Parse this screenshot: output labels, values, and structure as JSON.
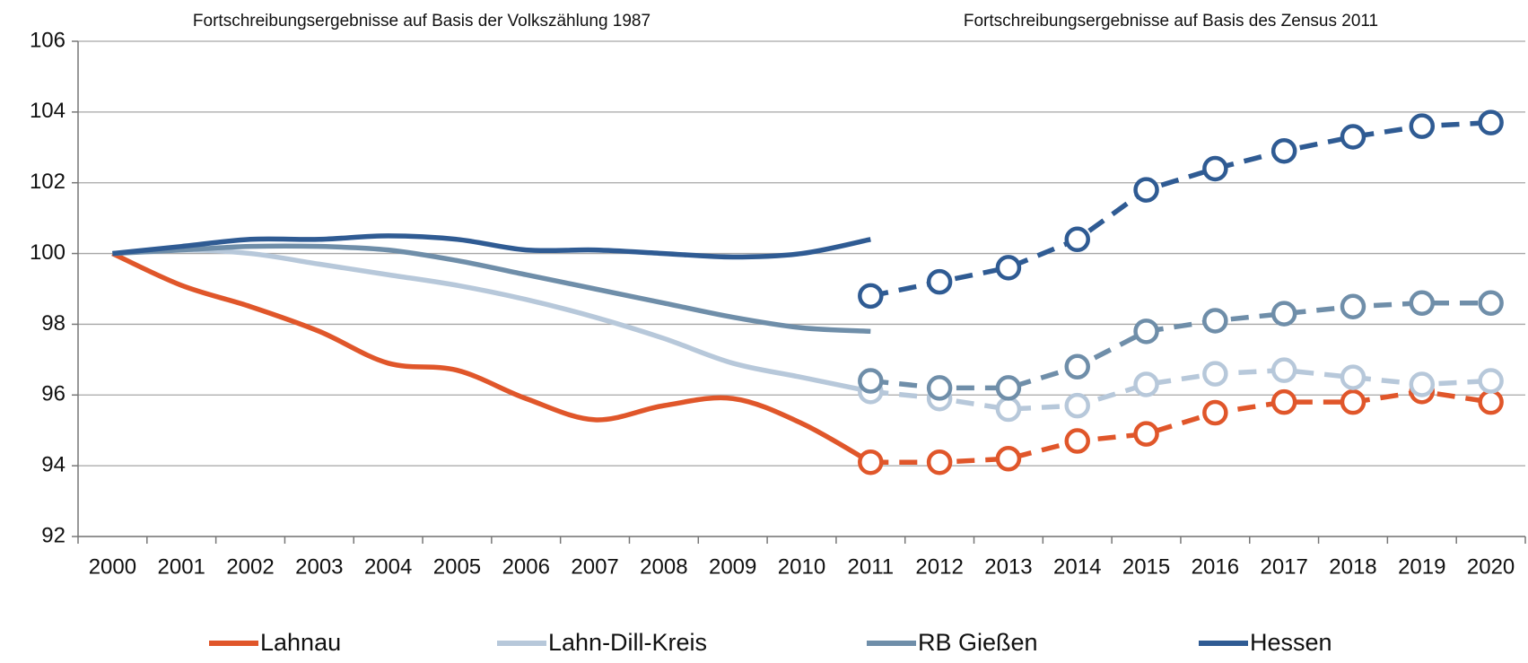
{
  "chart_data": {
    "type": "line",
    "annotations": [
      "Fortschreibungsergebnisse auf Basis der Volkszählung 1987",
      "Fortschreibungsergebnisse auf Basis des Zensus 2011"
    ],
    "categories": [
      "2000",
      "2001",
      "2002",
      "2003",
      "2004",
      "2005",
      "2006",
      "2007",
      "2008",
      "2009",
      "2010",
      "2011",
      "2012",
      "2013",
      "2014",
      "2015",
      "2016",
      "2017",
      "2018",
      "2019",
      "2020"
    ],
    "ylim": [
      92,
      106
    ],
    "yticks": [
      92,
      94,
      96,
      98,
      100,
      102,
      104,
      106
    ],
    "grid": true,
    "legend": "bottom",
    "series": [
      {
        "name": "Lahnau",
        "color": "#e0562a",
        "values": [
          100,
          99.1,
          98.5,
          97.8,
          96.9,
          96.7,
          95.9,
          95.3,
          95.7,
          95.9,
          95.2,
          94.1,
          null,
          null,
          null,
          null,
          null,
          null,
          null,
          null,
          null
        ],
        "census_values": [
          null,
          null,
          null,
          null,
          null,
          null,
          null,
          null,
          null,
          null,
          null,
          94.1,
          94.1,
          94.2,
          94.7,
          94.9,
          95.5,
          95.8,
          95.8,
          96.1,
          95.8
        ]
      },
      {
        "name": "Lahn-Dill-Kreis",
        "color": "#b7c8da",
        "values": [
          100,
          100.1,
          100.0,
          99.7,
          99.4,
          99.1,
          98.7,
          98.2,
          97.6,
          96.9,
          96.5,
          96.1,
          null,
          null,
          null,
          null,
          null,
          null,
          null,
          null,
          null
        ],
        "census_values": [
          null,
          null,
          null,
          null,
          null,
          null,
          null,
          null,
          null,
          null,
          null,
          96.1,
          95.9,
          95.6,
          95.7,
          96.3,
          96.6,
          96.7,
          96.5,
          96.3,
          96.4
        ]
      },
      {
        "name": "RB Gießen",
        "color": "#6f8ea9",
        "values": [
          100,
          100.1,
          100.2,
          100.2,
          100.1,
          99.8,
          99.4,
          99.0,
          98.6,
          98.2,
          97.9,
          97.8,
          null,
          null,
          null,
          null,
          null,
          null,
          null,
          null,
          null
        ],
        "census_values": [
          null,
          null,
          null,
          null,
          null,
          null,
          null,
          null,
          null,
          null,
          null,
          96.4,
          96.2,
          96.2,
          96.8,
          97.8,
          98.1,
          98.3,
          98.5,
          98.6,
          98.6
        ]
      },
      {
        "name": "Hessen",
        "color": "#2f5b93",
        "values": [
          100,
          100.2,
          100.4,
          100.4,
          100.5,
          100.4,
          100.1,
          100.1,
          100.0,
          99.9,
          100.0,
          100.4,
          null,
          null,
          null,
          null,
          null,
          null,
          null,
          null,
          null
        ],
        "census_values": [
          null,
          null,
          null,
          null,
          null,
          null,
          null,
          null,
          null,
          null,
          null,
          98.8,
          99.2,
          99.6,
          100.4,
          101.8,
          102.4,
          102.9,
          103.3,
          103.6,
          103.7
        ]
      }
    ]
  }
}
